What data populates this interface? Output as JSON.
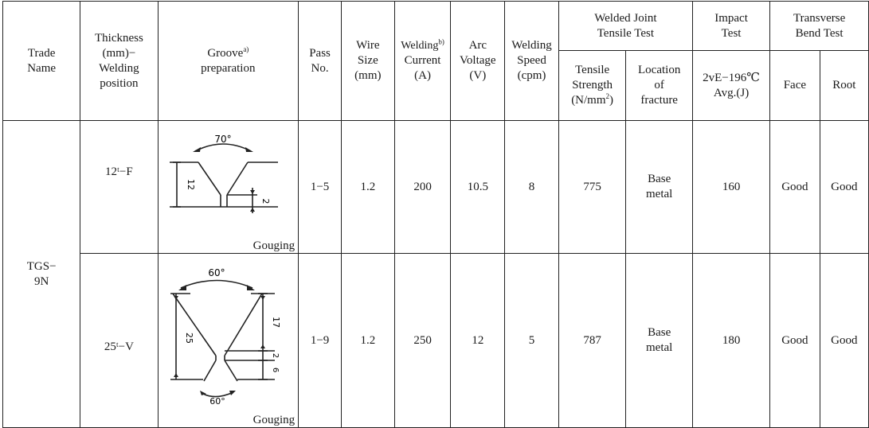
{
  "header": {
    "trade_name": [
      "Trade",
      "Name"
    ],
    "thickness": [
      "Thickness",
      "(mm)−",
      "Welding",
      "position"
    ],
    "groove": {
      "text": "Groove",
      "sup": "a)",
      "line2": "preparation"
    },
    "pass_no": [
      "Pass",
      "No."
    ],
    "wire_size": [
      "Wire",
      "Size",
      "(mm)"
    ],
    "welding_current": {
      "text": "Welding",
      "sup": "b)",
      "line2": "Current",
      "line3": "(A)"
    },
    "arc_voltage": [
      "Arc",
      "Voltage",
      "(V)"
    ],
    "welding_speed": [
      "Welding",
      "Speed",
      "(cpm)"
    ],
    "welded_joint": [
      "Welded  Joint",
      "Tensile  Test"
    ],
    "tensile_strength": {
      "l1": "Tensile",
      "l2": "Strength",
      "l3": "(N/mm",
      "sup": "2",
      "l4": ")"
    },
    "location_fracture": [
      "Location",
      "of",
      "fracture"
    ],
    "impact_test": [
      "Impact",
      "Test"
    ],
    "impact_sub": [
      "2vE−196℃",
      "Avg.(J)"
    ],
    "transverse": [
      "Transverse",
      "Bend  Test"
    ],
    "face": "Face",
    "root": "Root"
  },
  "trade_name_value": [
    "TGS−",
    "9N"
  ],
  "rows": [
    {
      "position": "12ᵗ−F",
      "groove_angle": "70°",
      "groove_dim1": "12",
      "groove_dim2": "2",
      "groove_note": "Gouging",
      "pass_no": "1−5",
      "wire_size": "1.2",
      "current": "200",
      "voltage": "10.5",
      "speed": "8",
      "tensile_strength": "775",
      "fracture_location": [
        "Base",
        "metal"
      ],
      "impact": "160",
      "face": "Good",
      "root": "Good"
    },
    {
      "position": "25ᵗ−V",
      "groove_angle_top": "60°",
      "groove_angle_bottom": "60°",
      "groove_dim_total": "25",
      "groove_dim_upper": "17",
      "groove_dim_mid": "2",
      "groove_dim_lower": "6",
      "groove_note": "Gouging",
      "pass_no": "1−9",
      "wire_size": "1.2",
      "current": "250",
      "voltage": "12",
      "speed": "5",
      "tensile_strength": "787",
      "fracture_location": [
        "Base",
        "metal"
      ],
      "impact": "180",
      "face": "Good",
      "root": "Good"
    }
  ]
}
